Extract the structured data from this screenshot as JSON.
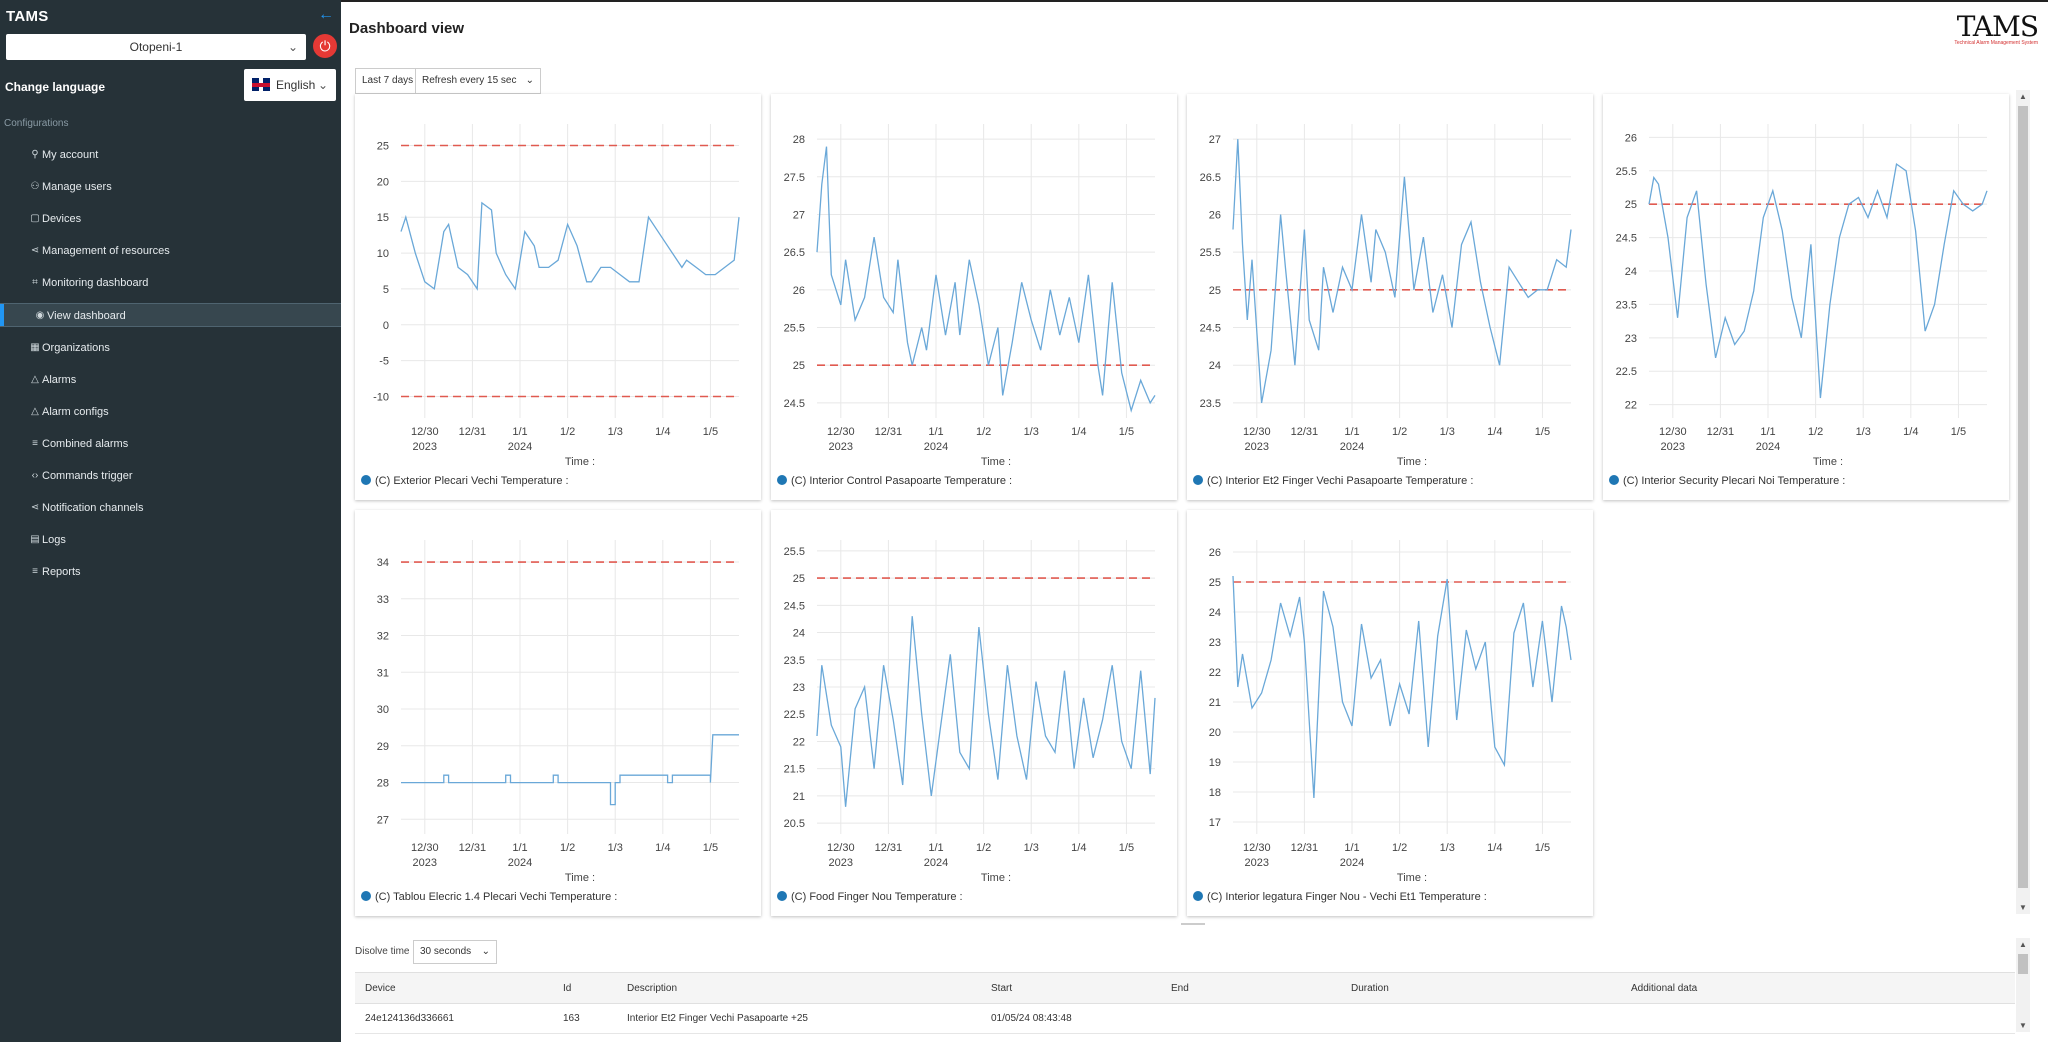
{
  "app": {
    "brand": "TAMS"
  },
  "sidebar": {
    "location": "Otopeni-1",
    "change_language_label": "Change language",
    "language": "English",
    "section_header": "Configurations",
    "items": [
      {
        "label": "My account",
        "icon": "user-icon"
      },
      {
        "label": "Manage users",
        "icon": "users-icon"
      },
      {
        "label": "Devices",
        "icon": "device-icon"
      },
      {
        "label": "Management of resources",
        "icon": "share-icon"
      },
      {
        "label": "Monitoring dashboard",
        "icon": "chart-icon"
      },
      {
        "label": "View dashboard",
        "icon": "eye-icon",
        "active": true
      },
      {
        "label": "Organizations",
        "icon": "grid-icon"
      },
      {
        "label": "Alarms",
        "icon": "bell-icon"
      },
      {
        "label": "Alarm configs",
        "icon": "bell-gear-icon"
      },
      {
        "label": "Combined alarms",
        "icon": "list-icon"
      },
      {
        "label": "Commands trigger",
        "icon": "code-icon"
      },
      {
        "label": "Notification channels",
        "icon": "share-icon"
      },
      {
        "label": "Logs",
        "icon": "book-icon"
      },
      {
        "label": "Reports",
        "icon": "list-icon"
      }
    ]
  },
  "header": {
    "title": "Dashboard view",
    "logo_text": "TAMS",
    "logo_tagline": "Technical Alarm Management System"
  },
  "controls": {
    "range": "Last 7 days",
    "refresh": "Refresh every 15 sec"
  },
  "colors": {
    "sidebar_bg": "#263238",
    "accent": "#2196f3",
    "series": "#6aa8d8",
    "threshold": "#e05a50",
    "legend_dot": "#1f77b4"
  },
  "chart_data": [
    {
      "type": "line",
      "title": "(C) Exterior Plecari Vechi Temperature :",
      "xlabel": "Time :",
      "x_ticks": [
        "12/30",
        "12/31",
        "1/1",
        "1/2",
        "1/3",
        "1/4",
        "1/5"
      ],
      "x_year_labels": {
        "12/30": "2023",
        "1/1": "2024"
      },
      "y_ticks": [
        -10,
        -5,
        0,
        5,
        10,
        15,
        20,
        25
      ],
      "ylim": [
        -13,
        28
      ],
      "thresholds": [
        25,
        -10
      ],
      "x_range": [
        0,
        7.1
      ],
      "y_start": 13,
      "y_end": 15,
      "series": [
        {
          "x": [
            0,
            0.1,
            0.3,
            0.5,
            0.7,
            0.9,
            1.0,
            1.2,
            1.4,
            1.6,
            1.7,
            1.9,
            2.0,
            2.2,
            2.4,
            2.6,
            2.8,
            2.9,
            3.1,
            3.3,
            3.5,
            3.7,
            3.9,
            4.0,
            4.2,
            4.4,
            4.6,
            4.8,
            5.0,
            5.2,
            5.5,
            5.7,
            5.9,
            6.0,
            6.2,
            6.4,
            6.6,
            6.8,
            7.0,
            7.1
          ],
          "y": [
            13,
            15,
            10,
            6,
            5,
            13,
            14,
            8,
            7,
            5,
            17,
            16,
            10,
            7,
            5,
            13,
            11,
            8,
            8,
            9,
            14,
            11,
            6,
            6,
            8,
            8,
            7,
            6,
            6,
            15,
            12,
            10,
            8,
            9,
            8,
            7,
            7,
            8,
            9,
            15
          ]
        }
      ]
    },
    {
      "type": "line",
      "title": "(C) Interior Control Pasapoarte Temperature :",
      "xlabel": "Time :",
      "x_ticks": [
        "12/30",
        "12/31",
        "1/1",
        "1/2",
        "1/3",
        "1/4",
        "1/5"
      ],
      "x_year_labels": {
        "12/30": "2023",
        "1/1": "2024"
      },
      "y_ticks": [
        24.5,
        25,
        25.5,
        26,
        26.5,
        27,
        27.5,
        28
      ],
      "ylim": [
        24.3,
        28.2
      ],
      "thresholds": [
        25
      ],
      "x_range": [
        0,
        7.1
      ],
      "series": [
        {
          "x": [
            0,
            0.1,
            0.2,
            0.3,
            0.5,
            0.6,
            0.8,
            1.0,
            1.2,
            1.4,
            1.6,
            1.7,
            1.9,
            2.0,
            2.2,
            2.3,
            2.5,
            2.7,
            2.9,
            3.0,
            3.2,
            3.4,
            3.6,
            3.8,
            3.9,
            4.1,
            4.3,
            4.5,
            4.7,
            4.9,
            5.1,
            5.3,
            5.5,
            5.7,
            5.9,
            6.0,
            6.2,
            6.4,
            6.6,
            6.8,
            7.0,
            7.1
          ],
          "y": [
            26.5,
            27.4,
            27.9,
            26.2,
            25.8,
            26.4,
            25.6,
            25.9,
            26.7,
            25.9,
            25.7,
            26.4,
            25.3,
            25.0,
            25.5,
            25.2,
            26.2,
            25.4,
            26.1,
            25.4,
            26.4,
            25.8,
            25.0,
            25.5,
            24.6,
            25.3,
            26.1,
            25.6,
            25.2,
            26.0,
            25.4,
            25.9,
            25.3,
            26.2,
            25.0,
            24.6,
            26.1,
            24.9,
            24.4,
            24.8,
            24.5,
            24.6
          ]
        }
      ]
    },
    {
      "type": "line",
      "title": "(C) Interior Et2 Finger Vechi Pasapoarte Temperature :",
      "xlabel": "Time :",
      "x_ticks": [
        "12/30",
        "12/31",
        "1/1",
        "1/2",
        "1/3",
        "1/4",
        "1/5"
      ],
      "x_year_labels": {
        "12/30": "2023",
        "1/1": "2024"
      },
      "y_ticks": [
        23.5,
        24,
        24.5,
        25,
        25.5,
        26,
        26.5,
        27
      ],
      "ylim": [
        23.3,
        27.2
      ],
      "thresholds": [
        25
      ],
      "x_range": [
        0,
        7.1
      ],
      "series": [
        {
          "x": [
            0,
            0.1,
            0.2,
            0.3,
            0.4,
            0.6,
            0.8,
            1.0,
            1.1,
            1.3,
            1.5,
            1.6,
            1.8,
            1.9,
            2.1,
            2.3,
            2.5,
            2.7,
            2.9,
            3.0,
            3.2,
            3.4,
            3.6,
            3.8,
            4.0,
            4.2,
            4.4,
            4.6,
            4.8,
            5.0,
            5.2,
            5.4,
            5.6,
            5.8,
            6.0,
            6.2,
            6.4,
            6.6,
            6.8,
            7.0,
            7.1
          ],
          "y": [
            25.8,
            27.0,
            25.6,
            24.6,
            25.4,
            23.5,
            24.2,
            26.0,
            25.3,
            24.0,
            25.8,
            24.6,
            24.2,
            25.3,
            24.7,
            25.3,
            25.0,
            26.0,
            25.1,
            25.8,
            25.5,
            24.9,
            26.5,
            25.0,
            25.7,
            24.7,
            25.2,
            24.5,
            25.6,
            25.9,
            25.1,
            24.5,
            24.0,
            25.3,
            25.1,
            24.9,
            25.0,
            25.0,
            25.4,
            25.3,
            25.8
          ]
        }
      ]
    },
    {
      "type": "line",
      "title": "(C) Interior Security Plecari Noi Temperature :",
      "xlabel": "Time :",
      "x_ticks": [
        "12/30",
        "12/31",
        "1/1",
        "1/2",
        "1/3",
        "1/4",
        "1/5"
      ],
      "x_year_labels": {
        "12/30": "2023",
        "1/1": "2024"
      },
      "y_ticks": [
        22,
        22.5,
        23,
        23.5,
        24,
        24.5,
        25,
        25.5,
        26
      ],
      "ylim": [
        21.8,
        26.2
      ],
      "thresholds": [
        25
      ],
      "x_range": [
        0,
        7.1
      ],
      "series": [
        {
          "x": [
            0,
            0.1,
            0.2,
            0.4,
            0.6,
            0.8,
            1.0,
            1.2,
            1.4,
            1.6,
            1.8,
            2.0,
            2.2,
            2.4,
            2.6,
            2.8,
            3.0,
            3.2,
            3.4,
            3.6,
            3.8,
            4.0,
            4.2,
            4.4,
            4.6,
            4.8,
            5.0,
            5.2,
            5.4,
            5.6,
            5.8,
            6.0,
            6.2,
            6.4,
            6.6,
            6.8,
            7.0,
            7.1
          ],
          "y": [
            25.0,
            25.4,
            25.3,
            24.5,
            23.3,
            24.8,
            25.2,
            23.8,
            22.7,
            23.3,
            22.9,
            23.1,
            23.7,
            24.8,
            25.2,
            24.6,
            23.6,
            23.0,
            24.4,
            22.1,
            23.5,
            24.5,
            25.0,
            25.1,
            24.8,
            25.2,
            24.8,
            25.6,
            25.5,
            24.6,
            23.1,
            23.5,
            24.4,
            25.2,
            25.0,
            24.9,
            25.0,
            25.2
          ]
        }
      ]
    },
    {
      "type": "line",
      "title": "(C) Tablou Elecric 1.4 Plecari Vechi Temperature :",
      "xlabel": "Time :",
      "x_ticks": [
        "12/30",
        "12/31",
        "1/1",
        "1/2",
        "1/3",
        "1/4",
        "1/5"
      ],
      "x_year_labels": {
        "12/30": "2023",
        "1/1": "2024"
      },
      "y_ticks": [
        27,
        28,
        29,
        30,
        31,
        32,
        33,
        34
      ],
      "ylim": [
        26.6,
        34.6
      ],
      "thresholds": [
        34
      ],
      "x_range": [
        0,
        7.1
      ],
      "series": [
        {
          "x": [
            0,
            0.9,
            0.9,
            1.0,
            1.0,
            2.2,
            2.2,
            2.3,
            2.3,
            3.2,
            3.2,
            3.3,
            3.3,
            4.4,
            4.4,
            4.5,
            4.5,
            4.6,
            4.6,
            5.6,
            5.6,
            5.7,
            5.7,
            6.5,
            6.5,
            6.55,
            6.55,
            6.9,
            7.1
          ],
          "y": [
            28,
            28,
            28.2,
            28.2,
            28,
            28,
            28.2,
            28.2,
            28,
            28,
            28.2,
            28.2,
            28,
            28,
            27.4,
            27.4,
            28,
            28,
            28.2,
            28.2,
            28,
            28,
            28.2,
            28.2,
            28,
            29.3,
            29.3,
            29.3,
            29.3
          ]
        }
      ]
    },
    {
      "type": "line",
      "title": "(C) Food Finger Nou Temperature :",
      "xlabel": "Time :",
      "x_ticks": [
        "12/30",
        "12/31",
        "1/1",
        "1/2",
        "1/3",
        "1/4",
        "1/5"
      ],
      "x_year_labels": {
        "12/30": "2023",
        "1/1": "2024"
      },
      "y_ticks": [
        20.5,
        21,
        21.5,
        22,
        22.5,
        23,
        23.5,
        24,
        24.5,
        25,
        25.5
      ],
      "ylim": [
        20.3,
        25.7
      ],
      "thresholds": [
        25
      ],
      "x_range": [
        0,
        7.1
      ],
      "series": [
        {
          "x": [
            0,
            0.1,
            0.3,
            0.5,
            0.6,
            0.8,
            1.0,
            1.2,
            1.4,
            1.6,
            1.8,
            2.0,
            2.2,
            2.4,
            2.6,
            2.8,
            3.0,
            3.2,
            3.4,
            3.6,
            3.8,
            4.0,
            4.2,
            4.4,
            4.6,
            4.8,
            5.0,
            5.2,
            5.4,
            5.6,
            5.8,
            6.0,
            6.2,
            6.4,
            6.6,
            6.8,
            7.0,
            7.1
          ],
          "y": [
            22.1,
            23.4,
            22.3,
            21.9,
            20.8,
            22.6,
            23.0,
            21.5,
            23.4,
            22.4,
            21.2,
            24.3,
            22.5,
            21.0,
            22.3,
            23.6,
            21.8,
            21.5,
            24.1,
            22.5,
            21.3,
            23.4,
            22.1,
            21.3,
            23.1,
            22.1,
            21.8,
            23.3,
            21.5,
            22.8,
            21.7,
            22.4,
            23.4,
            22.0,
            21.5,
            23.3,
            21.4,
            22.8
          ]
        }
      ]
    },
    {
      "type": "line",
      "title": "(C) Interior legatura Finger Nou - Vechi Et1 Temperature :",
      "xlabel": "Time :",
      "x_ticks": [
        "12/30",
        "12/31",
        "1/1",
        "1/2",
        "1/3",
        "1/4",
        "1/5"
      ],
      "x_year_labels": {
        "12/30": "2023",
        "1/1": "2024"
      },
      "y_ticks": [
        17,
        18,
        19,
        20,
        21,
        22,
        23,
        24,
        25,
        26
      ],
      "ylim": [
        16.6,
        26.4
      ],
      "thresholds": [
        25
      ],
      "x_range": [
        0,
        7.1
      ],
      "series": [
        {
          "x": [
            0,
            0.1,
            0.2,
            0.4,
            0.6,
            0.8,
            1.0,
            1.2,
            1.4,
            1.5,
            1.7,
            1.9,
            2.1,
            2.3,
            2.5,
            2.7,
            2.9,
            3.1,
            3.3,
            3.5,
            3.7,
            3.9,
            4.1,
            4.3,
            4.5,
            4.7,
            4.9,
            5.1,
            5.3,
            5.5,
            5.7,
            5.9,
            6.1,
            6.3,
            6.5,
            6.7,
            6.9,
            7.0,
            7.1
          ],
          "y": [
            25.2,
            21.5,
            22.6,
            20.8,
            21.3,
            22.4,
            24.3,
            23.2,
            24.5,
            23.0,
            17.8,
            24.7,
            23.5,
            21.0,
            20.2,
            23.6,
            21.8,
            22.4,
            20.2,
            21.6,
            20.6,
            23.7,
            19.5,
            23.2,
            25.1,
            20.4,
            23.4,
            22.1,
            23.0,
            19.5,
            18.9,
            23.3,
            24.3,
            21.5,
            23.7,
            21.0,
            24.2,
            23.5,
            22.4
          ]
        }
      ]
    }
  ],
  "alarms": {
    "dissolve_label": "Disolve time",
    "dissolve_value": "30 seconds",
    "columns": [
      "Device",
      "Id",
      "Description",
      "Start",
      "End",
      "Duration",
      "Additional data"
    ],
    "rows": [
      [
        "24e124136d336661",
        "163",
        "Interior Et2 Finger Vechi Pasapoarte +25",
        "01/05/24 08:43:48",
        "",
        "",
        ""
      ]
    ]
  }
}
